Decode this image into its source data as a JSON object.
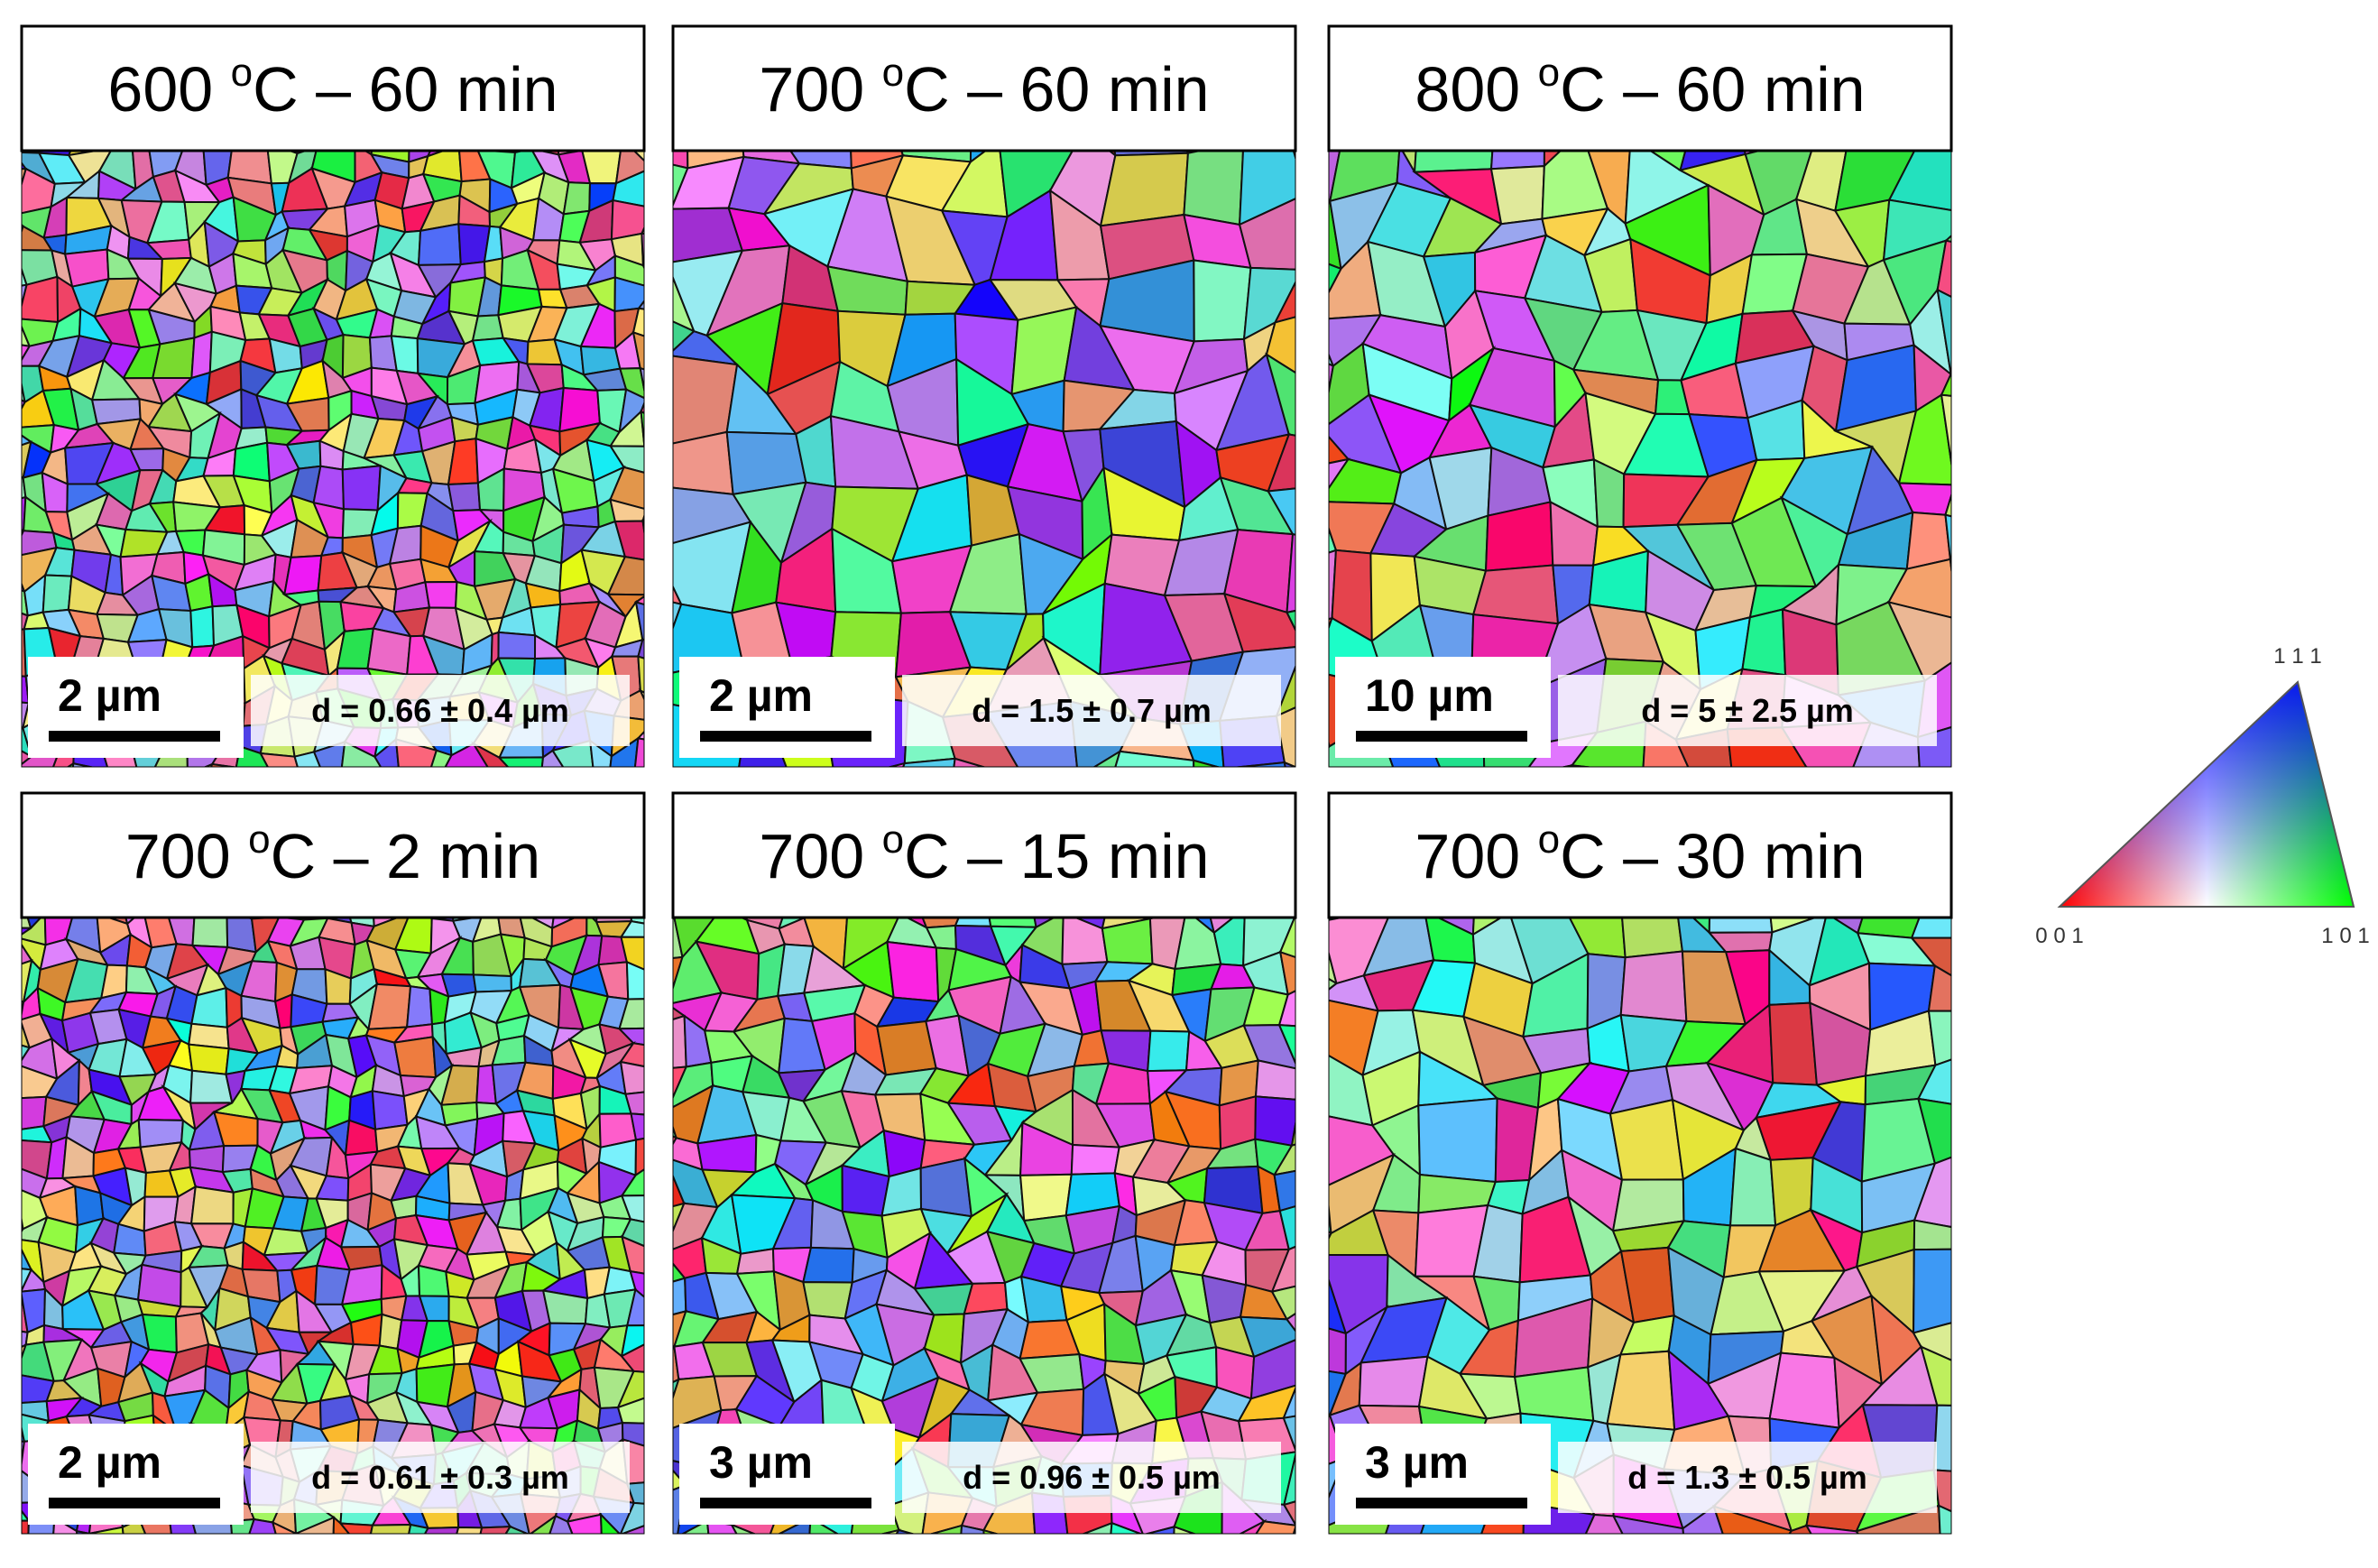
{
  "panels": [
    {
      "title": {
        "temp": "600 ",
        "deg": "o",
        "rest": "C – 60 min"
      },
      "scale_bar": "2 µm",
      "grain_size": "d = 0.66 ± 0.4 µm"
    },
    {
      "title": {
        "temp": "700 ",
        "deg": "o",
        "rest": "C – 60 min"
      },
      "scale_bar": "2 µm",
      "grain_size": "d = 1.5 ± 0.7 µm"
    },
    {
      "title": {
        "temp": "800 ",
        "deg": "o",
        "rest": "C – 60 min"
      },
      "scale_bar": "10 µm",
      "grain_size": "d = 5 ± 2.5 µm"
    },
    {
      "title": {
        "temp": "700 ",
        "deg": "o",
        "rest": "C – 2 min"
      },
      "scale_bar": "2 µm",
      "grain_size": "d = 0.61 ± 0.3 µm"
    },
    {
      "title": {
        "temp": "700 ",
        "deg": "o",
        "rest": "C – 15 min"
      },
      "scale_bar": "3 µm",
      "grain_size": "d = 0.96 ± 0.5 µm"
    },
    {
      "title": {
        "temp": "700 ",
        "deg": "o",
        "rest": "C – 30 min"
      },
      "scale_bar": "3 µm",
      "grain_size": "d = 1.3 ± 0.5 µm"
    }
  ],
  "legend": {
    "top": "1 1 1",
    "left": "0 0 1",
    "right": "1 0 1"
  }
}
